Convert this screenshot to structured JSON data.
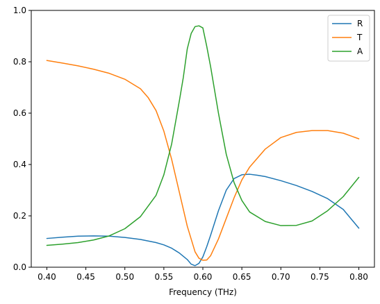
{
  "chart_data": {
    "type": "line",
    "xlabel": "Frequency (THz)",
    "ylabel": "",
    "xlim": [
      0.38,
      0.82
    ],
    "ylim": [
      0.0,
      1.0
    ],
    "xticks": [
      "0.40",
      "0.45",
      "0.50",
      "0.55",
      "0.60",
      "0.65",
      "0.70",
      "0.75",
      "0.80"
    ],
    "yticks": [
      "0.0",
      "0.2",
      "0.4",
      "0.6",
      "0.8",
      "1.0"
    ],
    "grid": false,
    "legend_position": "top-right",
    "series": [
      {
        "name": "R",
        "color": "#1f77b4",
        "x": [
          0.4,
          0.42,
          0.44,
          0.46,
          0.48,
          0.5,
          0.52,
          0.54,
          0.55,
          0.56,
          0.57,
          0.58,
          0.585,
          0.59,
          0.595,
          0.6,
          0.605,
          0.61,
          0.62,
          0.63,
          0.64,
          0.65,
          0.66,
          0.67,
          0.68,
          0.7,
          0.72,
          0.74,
          0.76,
          0.78,
          0.8
        ],
        "values": [
          0.112,
          0.117,
          0.121,
          0.122,
          0.121,
          0.116,
          0.108,
          0.096,
          0.087,
          0.074,
          0.055,
          0.03,
          0.012,
          0.006,
          0.015,
          0.04,
          0.08,
          0.125,
          0.22,
          0.3,
          0.345,
          0.36,
          0.362,
          0.358,
          0.353,
          0.337,
          0.318,
          0.295,
          0.267,
          0.225,
          0.152
        ]
      },
      {
        "name": "T",
        "color": "#ff7f0e",
        "x": [
          0.4,
          0.42,
          0.44,
          0.46,
          0.48,
          0.5,
          0.52,
          0.53,
          0.54,
          0.55,
          0.56,
          0.57,
          0.58,
          0.59,
          0.595,
          0.6,
          0.605,
          0.61,
          0.62,
          0.63,
          0.64,
          0.65,
          0.66,
          0.68,
          0.7,
          0.72,
          0.74,
          0.76,
          0.78,
          0.8
        ],
        "values": [
          0.805,
          0.795,
          0.784,
          0.771,
          0.755,
          0.732,
          0.695,
          0.66,
          0.61,
          0.53,
          0.42,
          0.29,
          0.16,
          0.06,
          0.035,
          0.027,
          0.028,
          0.045,
          0.11,
          0.19,
          0.27,
          0.34,
          0.39,
          0.46,
          0.505,
          0.525,
          0.532,
          0.532,
          0.522,
          0.5
        ]
      },
      {
        "name": "A",
        "color": "#2ca02c",
        "x": [
          0.4,
          0.42,
          0.44,
          0.46,
          0.48,
          0.5,
          0.52,
          0.54,
          0.55,
          0.56,
          0.57,
          0.575,
          0.58,
          0.585,
          0.59,
          0.595,
          0.6,
          0.605,
          0.61,
          0.62,
          0.63,
          0.64,
          0.65,
          0.66,
          0.68,
          0.7,
          0.72,
          0.74,
          0.76,
          0.78,
          0.8
        ],
        "values": [
          0.085,
          0.09,
          0.096,
          0.106,
          0.122,
          0.15,
          0.197,
          0.28,
          0.36,
          0.48,
          0.65,
          0.74,
          0.85,
          0.91,
          0.937,
          0.94,
          0.932,
          0.86,
          0.78,
          0.6,
          0.44,
          0.33,
          0.26,
          0.215,
          0.178,
          0.162,
          0.163,
          0.18,
          0.22,
          0.275,
          0.35
        ]
      }
    ]
  }
}
